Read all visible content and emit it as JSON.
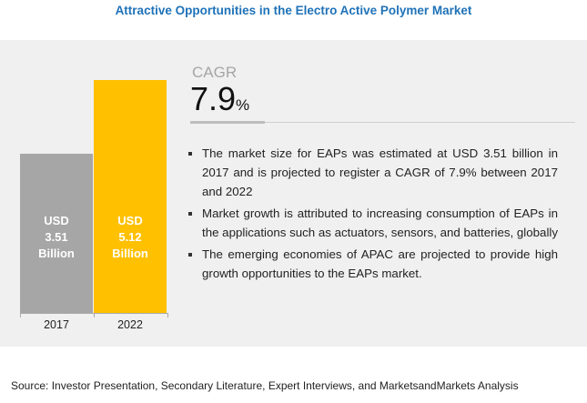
{
  "chart_data": {
    "type": "bar",
    "title": "Attractive Opportunities in the Electro Active Polymer Market",
    "categories": [
      "2017",
      "2022"
    ],
    "values": [
      3.51,
      5.12
    ],
    "data_labels": [
      "USD\n3.51\nBillion",
      "USD\n5.12\nBillion"
    ],
    "colors": [
      "#a6a6a6",
      "#ffc000"
    ],
    "unit": "USD Billion",
    "grid": false
  },
  "cagr": {
    "label": "CAGR",
    "value": "7.9",
    "unit": "%"
  },
  "bullets": [
    "The market size for EAPs was estimated at USD 3.51 billion in 2017 and is projected to register a CAGR of 7.9% between 2017 and 2022",
    "Market growth is attributed to increasing consumption of EAPs in the applications such as actuators, sensors, and batteries, globally",
    "The emerging economies of APAC are projected to provide high growth opportunities to the EAPs market."
  ],
  "source": "Source: Investor Presentation, Secondary Literature, Expert Interviews, and MarketsandMarkets Analysis"
}
